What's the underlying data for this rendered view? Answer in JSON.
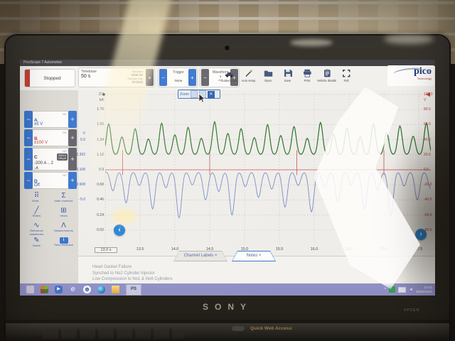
{
  "window_title": "PicoScope 7 Automotive",
  "run_control": {
    "status": "Stopped"
  },
  "timebase": {
    "label": "Timebase",
    "value": "50 s",
    "samples_label": "Samples",
    "samples_value": "1000 kS",
    "rate_label": "Sample rate",
    "rate_value": "20 kS/s"
  },
  "trigger": {
    "label": "Trigger",
    "mode": "None"
  },
  "waveform_nav": {
    "label": "Waveform",
    "current": "1",
    "of": "of 1"
  },
  "toolbar_buttons": [
    {
      "icon": "car-icon",
      "label": "Guided tests"
    },
    {
      "icon": "wand-icon",
      "label": "Auto setup"
    },
    {
      "icon": "folder-icon",
      "label": "Open"
    },
    {
      "icon": "save-icon",
      "label": "Save"
    },
    {
      "icon": "printer-icon",
      "label": "Print"
    },
    {
      "icon": "clipboard-icon",
      "label": "Vehicle details"
    },
    {
      "icon": "expand-icon",
      "label": "Full"
    }
  ],
  "brand": {
    "logo": "pico",
    "sub": "Technology"
  },
  "channels": [
    {
      "id": "A",
      "coupling": "DC",
      "range": "±5 V",
      "accent": "#2f55b5",
      "plus_dark": false
    },
    {
      "id": "B",
      "coupling": "DC",
      "range": "±100 V",
      "accent": "#c23b3b",
      "plus_dark": true
    },
    {
      "id": "C",
      "coupling": "DC",
      "range": "-200 A .. 2",
      "badge_line1": "2000 A",
      "badge_line2": "198 μH",
      "probe": "↓A",
      "accent": "#333333",
      "plus_dark": true
    },
    {
      "id": "D",
      "coupling": "DC",
      "range": "Off",
      "accent": "#2f55b5",
      "plus_dark": false
    }
  ],
  "sidebar_tools": [
    {
      "icon": "more-icon",
      "glyph": "⠿",
      "label": "More..."
    },
    {
      "icon": "math-channels-icon",
      "glyph": "Σ",
      "label": "Math channels"
    },
    {
      "icon": "rulers-icon",
      "glyph": "╱",
      "label": "Rulers"
    },
    {
      "icon": "views-icon",
      "glyph": "⊞",
      "label": "Views"
    },
    {
      "icon": "reference-waveforms-icon",
      "glyph": "∿",
      "label": "Reference waveforms"
    },
    {
      "icon": "measurements-icon",
      "glyph": "Λ",
      "label": "Measurements"
    },
    {
      "icon": "notes-icon",
      "glyph": "✎",
      "label": "Notes"
    },
    {
      "icon": "send-feedback-icon",
      "glyph": "i",
      "label": "Send feedback",
      "chip": true
    }
  ],
  "zoom_overlay": {
    "label": "Zoom",
    "close": "✕"
  },
  "chart_data": {
    "type": "line",
    "title": "",
    "x_axis": {
      "unit": "s",
      "range": [
        13.0,
        17.95
      ],
      "tick_labels": [
        "13.0 s",
        "13.5",
        "14.0",
        "14.5",
        "15.0",
        "15.5",
        "16.0",
        "16.5",
        "17.0",
        "17.5"
      ],
      "grid": "dashed"
    },
    "y_axes": [
      {
        "id": "V_A",
        "name": "channel-a-volts",
        "unit": "V",
        "color": "#2f55b5",
        "labels": [
          "5.0",
          "2.392",
          "-0.108",
          "-2.608",
          "-5.0"
        ],
        "first_gridline": 3,
        "top_value": 12.5,
        "per_gridline": 2.5,
        "side": "left-outer"
      },
      {
        "id": "kA",
        "name": "channel-c-kiloamps",
        "unit": "kA",
        "color": "#3c523c",
        "labels": [
          "2.0",
          "1.78",
          "1.56",
          "1.34",
          "1.12",
          "0.9",
          "0.68",
          "0.46",
          "0.24",
          "0.02"
        ],
        "first_gridline": 0,
        "top_value": 2.0,
        "per_gridline": 0.22,
        "side": "left-inner"
      },
      {
        "id": "V_B",
        "name": "channel-b-volts",
        "unit": "V",
        "color": "#c23b3b",
        "labels": [
          "100.0",
          "80.0",
          "60.0",
          "40.0",
          "20.0",
          "0.0",
          "-20.0",
          "-40.0",
          "-60.0",
          "-80.0"
        ],
        "first_gridline": 0,
        "top_value": 100,
        "per_gridline": 20,
        "side": "right"
      }
    ],
    "series": [
      {
        "name": "channel-b-injector-voltage",
        "axis": "V_B",
        "type": "pulses",
        "color": "#cc4a4a",
        "base": 0.0,
        "pulse_times": [
          13.25,
          14.5,
          15.75,
          17.0
        ],
        "pulse_up": 26,
        "pulse_down": -7
      },
      {
        "name": "channel-a-vacuum-waveform",
        "axis": "V_A",
        "type": "humps",
        "color": "#6f86c9",
        "base": -0.3,
        "t0": 13.11,
        "period": 0.19,
        "sigma": 0.05,
        "peaks": [
          -3.5,
          -5.5,
          -2.6,
          -6.5,
          -3.0,
          -8.0,
          -2.5,
          -5.0,
          -3.6,
          -7.5,
          -2.8,
          -4.6,
          -3.2,
          -6.2,
          -2.6,
          -7.0,
          -3.0,
          -5.4,
          -2.5,
          -6.6,
          -3.4,
          -7.6,
          -2.7,
          -5.0,
          -3.1,
          -6.0
        ]
      },
      {
        "name": "channel-c-cranking-current",
        "axis": "kA",
        "type": "humps",
        "color": "#1e6b1e",
        "base": 1.12,
        "t0": 13.05,
        "period": 0.19,
        "sigma": 0.045,
        "peaks": [
          1.57,
          1.38,
          1.5,
          1.35,
          1.58,
          1.41,
          1.52,
          1.36,
          1.6,
          1.43,
          1.5,
          1.37,
          1.56,
          1.4,
          1.53,
          1.36,
          1.59,
          1.42,
          1.51,
          1.38,
          1.57,
          1.44,
          1.54,
          1.39,
          1.58,
          1.41
        ]
      }
    ],
    "legend": "none"
  },
  "doc_tabs": [
    {
      "label": "Channel Labels",
      "close": "×",
      "active": false
    },
    {
      "label": "Notes",
      "close": "×",
      "active": true
    }
  ],
  "notes_lines": [
    "Head Gasket Failure",
    "Synched to No2 Cylinder Injector",
    "Low Compression to No1 & No6 Cylinders"
  ],
  "taskbar": {
    "ps_label": "PS",
    "tray_expand": "^",
    "tray_time": "10:41",
    "tray_date": "26/05/2022"
  },
  "laptop": {
    "brand": "SONY",
    "model": "VPCEH",
    "quick_web_label": "Quick Web Access:"
  }
}
